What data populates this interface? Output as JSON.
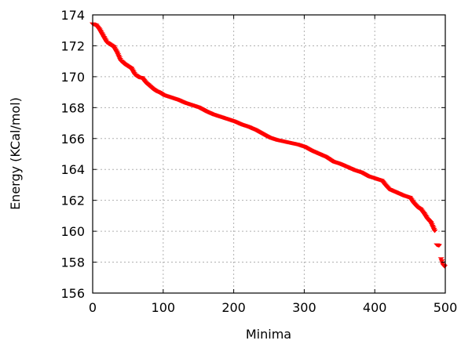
{
  "chart_data": {
    "type": "scatter",
    "title": "",
    "xlabel": "Minima",
    "ylabel": "Energy (KCal/mol)",
    "xlim": [
      0,
      500
    ],
    "ylim": [
      156,
      174
    ],
    "xticks": [
      0,
      100,
      200,
      300,
      400,
      500
    ],
    "yticks": [
      156,
      158,
      160,
      162,
      164,
      166,
      168,
      170,
      172,
      174
    ],
    "grid": true,
    "marker": "triangle-down",
    "marker_color": "#ff0000",
    "series": [
      {
        "x": [
          0,
          5,
          10,
          15,
          20,
          25,
          30,
          35,
          40,
          45,
          50,
          55,
          60,
          65,
          70,
          75,
          80,
          85,
          90,
          95,
          100,
          110,
          120,
          130,
          140,
          150,
          160,
          170,
          180,
          190,
          200,
          210,
          220,
          230,
          240,
          250,
          260,
          270,
          280,
          290,
          300,
          310,
          320,
          330,
          340,
          350,
          360,
          370,
          380,
          390,
          400,
          410,
          415,
          420,
          430,
          440,
          450,
          455,
          460,
          465,
          470,
          475,
          480,
          485,
          488,
          491,
          494,
          497,
          499
        ],
        "y": [
          173.4,
          173.3,
          173.0,
          172.6,
          172.2,
          172.05,
          171.9,
          171.5,
          171.0,
          170.8,
          170.65,
          170.5,
          170.1,
          169.95,
          169.9,
          169.6,
          169.4,
          169.2,
          169.05,
          168.95,
          168.8,
          168.65,
          168.5,
          168.3,
          168.15,
          168.0,
          167.75,
          167.55,
          167.4,
          167.25,
          167.1,
          166.9,
          166.75,
          166.55,
          166.3,
          166.05,
          165.9,
          165.8,
          165.7,
          165.6,
          165.45,
          165.2,
          165.0,
          164.8,
          164.5,
          164.35,
          164.15,
          163.95,
          163.8,
          163.55,
          163.4,
          163.25,
          162.95,
          162.7,
          162.5,
          162.3,
          162.15,
          161.8,
          161.55,
          161.4,
          161.1,
          160.75,
          160.5,
          160.0,
          159.1,
          159.05,
          158.2,
          157.8,
          157.7
        ]
      }
    ]
  }
}
